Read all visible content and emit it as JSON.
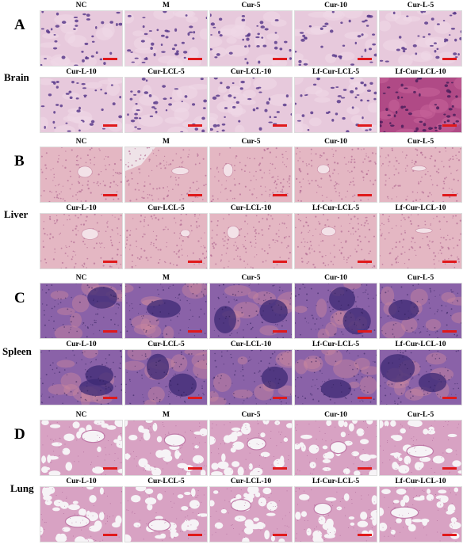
{
  "groups": [
    "NC",
    "M",
    "Cur-5",
    "Cur-10",
    "Cur-L-5",
    "Cur-L-10",
    "Cur-LCL-5",
    "Cur-LCL-10",
    "Lf-Cur-LCL-5",
    "Lf-Cur-LCL-10"
  ],
  "panels": [
    {
      "letter": "A",
      "organ": "Brain",
      "tissue": "brain"
    },
    {
      "letter": "B",
      "organ": "Liver",
      "tissue": "liver"
    },
    {
      "letter": "C",
      "organ": "Spleen",
      "tissue": "spleen"
    },
    {
      "letter": "D",
      "organ": "Lung",
      "tissue": "lung"
    }
  ],
  "colors": {
    "scalebar": "#e0191b",
    "brain_bg": "#e7c9dc",
    "brain_nuclei": "#5b3c8c",
    "brain_dark_bg": "#b04a86",
    "liver_bg": "#e4b7c3",
    "liver_dots": "#b36c94",
    "spleen_bg": "#8a62a8",
    "spleen_follicle": "#3c2a74",
    "spleen_red": "#c9879d",
    "lung_bg": "#f6f3f6",
    "lung_tissue": "#d8a2c3"
  }
}
